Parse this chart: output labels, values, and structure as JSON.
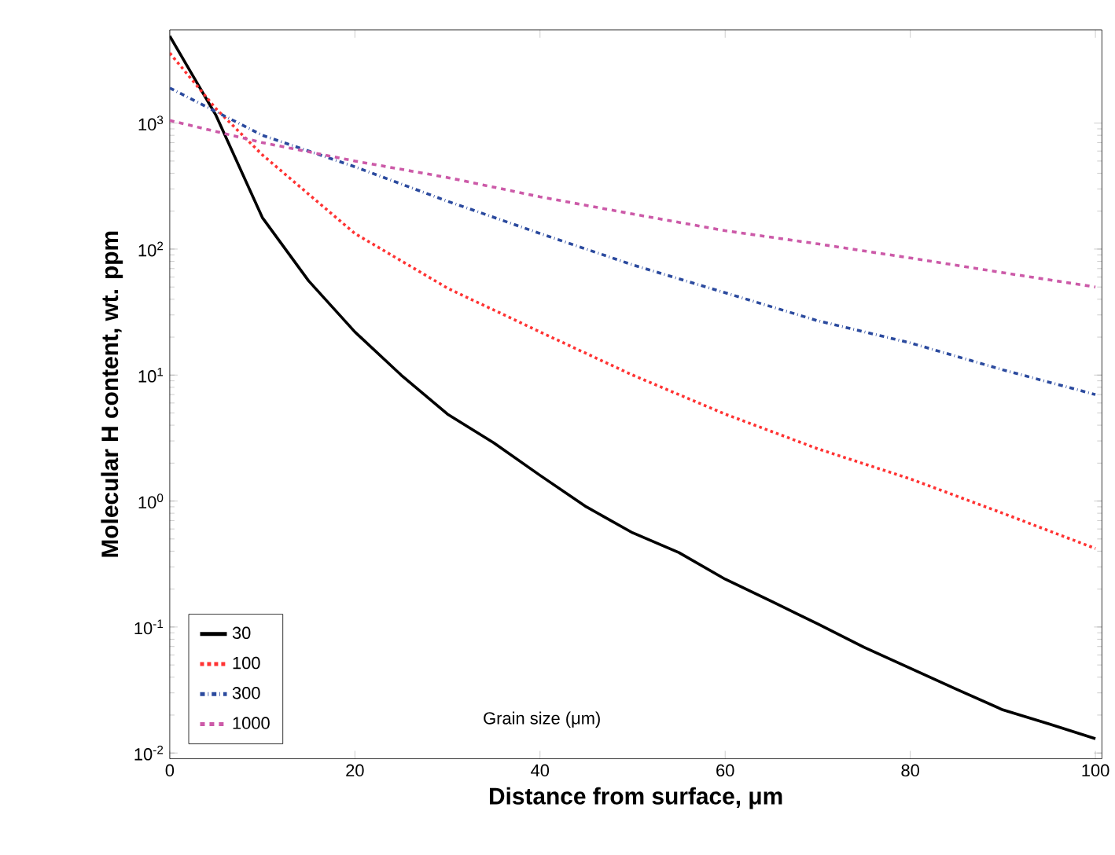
{
  "chart_data": {
    "type": "line",
    "xlabel": "Distance from surface, μm",
    "ylabel": "Molecular H content, wt. ppm",
    "legend_title": "Grain size (μm)",
    "x": [
      0,
      5,
      10,
      15,
      20,
      25,
      30,
      35,
      40,
      45,
      50,
      55,
      60,
      65,
      70,
      75,
      80,
      85,
      90,
      95,
      100
    ],
    "series": [
      {
        "name": "30",
        "color": "#000000",
        "line_style": "solid",
        "values": [
          4900,
          1150,
          178,
          56,
          22,
          10,
          4.9,
          2.9,
          1.6,
          0.9,
          0.56,
          0.39,
          0.24,
          0.16,
          0.106,
          0.069,
          0.047,
          0.032,
          0.022,
          0.017,
          0.013
        ]
      },
      {
        "name": "100",
        "color": "#ff3333",
        "line_style": "dotted",
        "x": [
          0,
          5,
          10,
          20,
          30,
          40,
          50,
          60,
          70,
          80,
          90,
          100
        ],
        "values": [
          3600,
          1300,
          560,
          133,
          49,
          22,
          10,
          4.9,
          2.6,
          1.5,
          0.8,
          0.42
        ]
      },
      {
        "name": "300",
        "color": "#2b4a9e",
        "line_style": "dashdot",
        "x": [
          0,
          10,
          20,
          30,
          40,
          50,
          60,
          70,
          80,
          90,
          100
        ],
        "values": [
          1900,
          800,
          450,
          240,
          133,
          75,
          45,
          27,
          18,
          11,
          7
        ]
      },
      {
        "name": "1000",
        "color": "#cc5aa8",
        "line_style": "dashed",
        "x": [
          0,
          10,
          20,
          30,
          40,
          50,
          60,
          70,
          80,
          90,
          100
        ],
        "values": [
          1050,
          700,
          500,
          370,
          260,
          190,
          140,
          110,
          85,
          65,
          50
        ]
      }
    ],
    "log": "y",
    "xlim": [
      0,
      100.7
    ],
    "ylim": [
      0.009,
      5500
    ],
    "xticks": [
      0,
      20,
      40,
      60,
      80,
      100
    ],
    "yticks": [
      {
        "value": 0.01,
        "label": "10$^{-2}$"
      },
      {
        "value": 0.1,
        "label": "10$^{-1}$"
      },
      {
        "value": 1,
        "label": "10$^{0}$"
      },
      {
        "value": 10,
        "label": "10$^{1}$"
      },
      {
        "value": 100,
        "label": "10$^{2}$"
      },
      {
        "value": 1000,
        "label": "10$^{3}$"
      }
    ],
    "legend": "bottom left",
    "grid": false
  }
}
